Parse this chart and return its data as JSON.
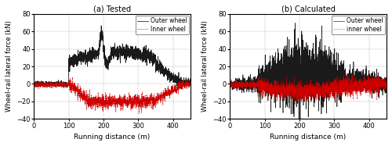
{
  "title_a": "(a) Tested",
  "title_b": "(b) Calculated",
  "xlabel": "Running distance (m)",
  "ylabel": "Wheel-rail lateral force (kN)",
  "xlim": [
    0,
    450
  ],
  "ylim": [
    -40,
    80
  ],
  "yticks": [
    -40,
    -20,
    0,
    20,
    40,
    60,
    80
  ],
  "xticks": [
    0,
    100,
    200,
    300,
    400
  ],
  "legend_outer": "Outer wheel",
  "legend_inner_a": "Inner wheel",
  "legend_inner_b": "inner wheel",
  "outer_color": "#1a1a1a",
  "inner_color": "#cc0000",
  "figsize": [
    5.0,
    1.87
  ],
  "dpi": 100
}
